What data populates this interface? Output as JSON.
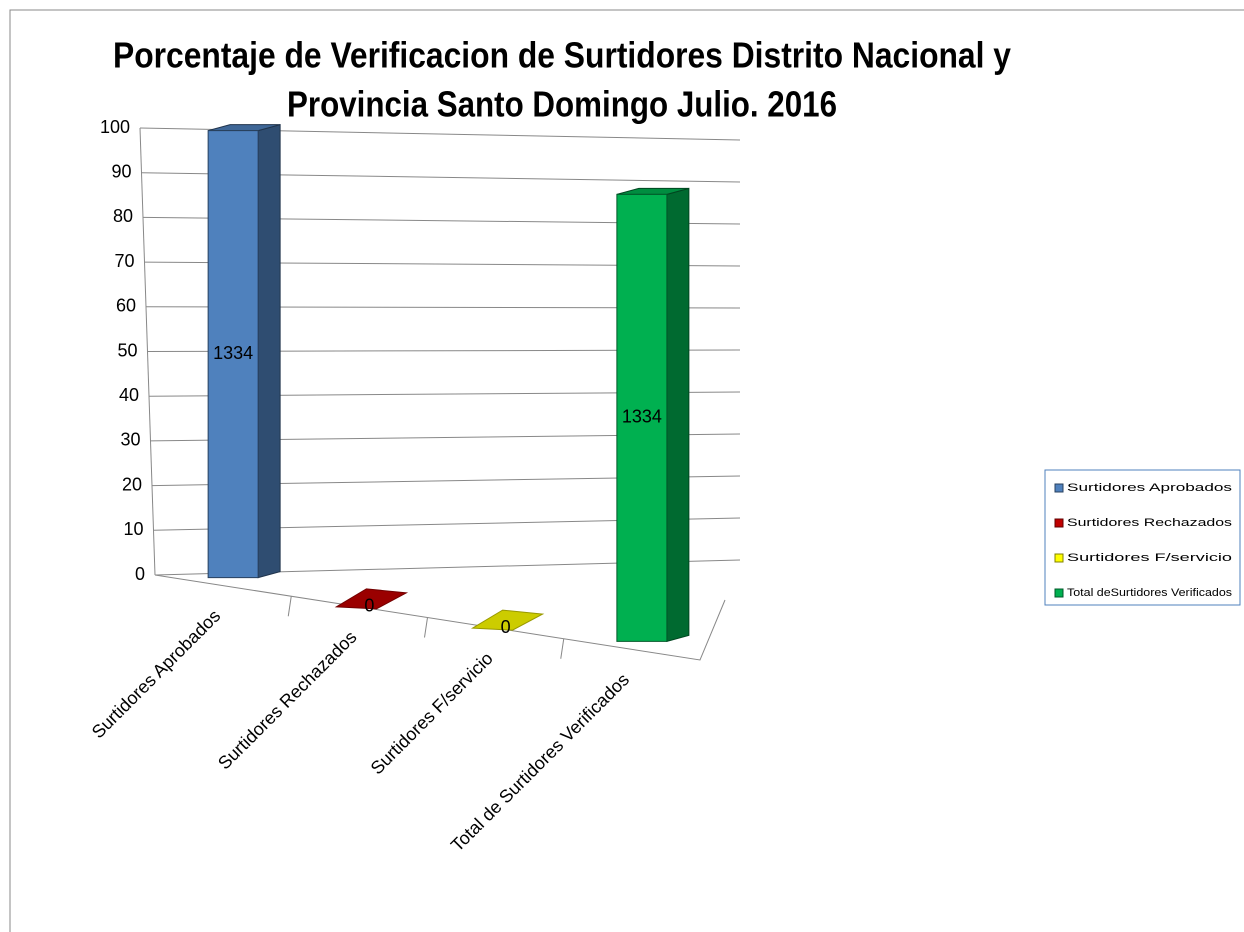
{
  "chart_data": {
    "type": "bar3d",
    "title": [
      "Porcentaje de Verificacion de Surtidores Distrito Nacional  y",
      "Provincia Santo Domingo Julio. 2016"
    ],
    "categories": [
      "Surtidores Aprobados",
      "Surtidores Rechazados",
      "Surtidores F/servicio",
      "Total de Surtidores Verificados"
    ],
    "values": [
      100,
      0,
      0,
      100
    ],
    "annotations": [
      "1334",
      "0",
      "0",
      "1334"
    ],
    "colors": [
      "#4f81bd",
      "#c00000",
      "#ffff00",
      "#00b050"
    ],
    "legend": [
      "Surtidores Aprobados",
      "Surtidores Rechazados",
      "Surtidores F/servicio",
      "Total deSurtidores Verificados"
    ],
    "legend_position": "right",
    "ylim": [
      0,
      100
    ],
    "yticks": [
      0,
      10,
      20,
      30,
      40,
      50,
      60,
      70,
      80,
      90,
      100
    ],
    "grid": true
  }
}
